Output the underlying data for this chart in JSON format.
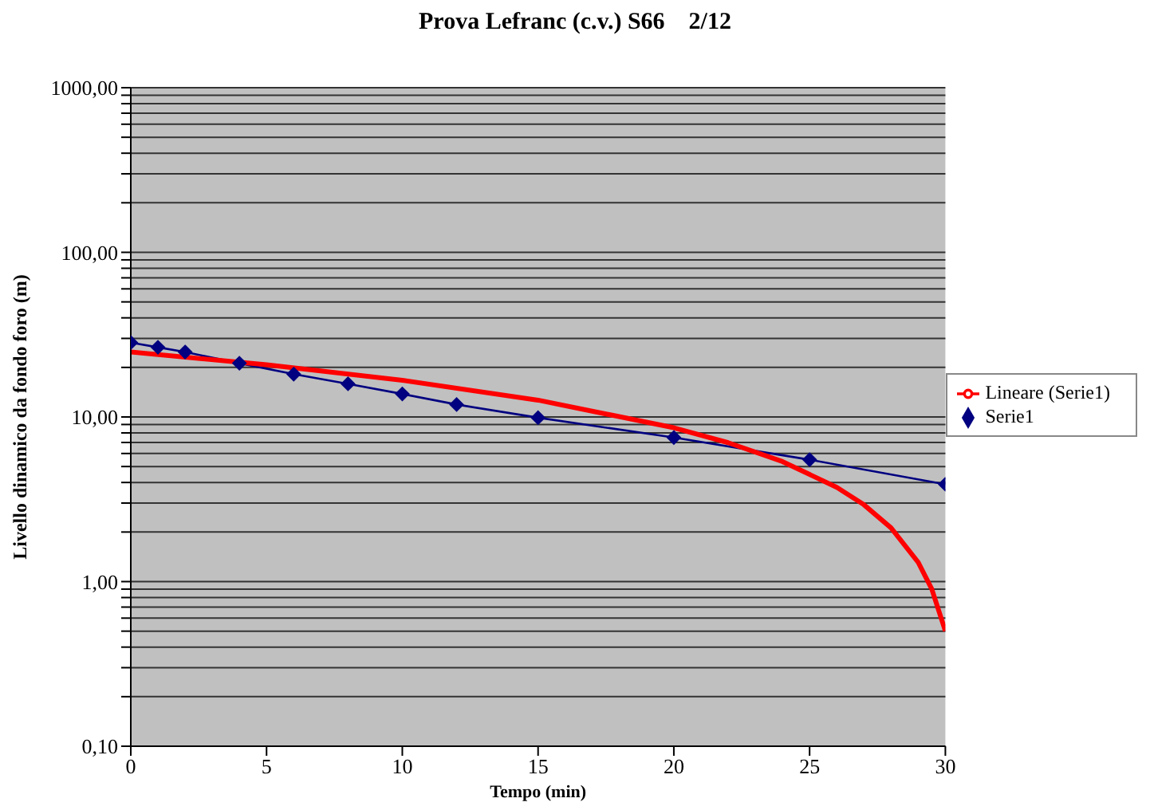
{
  "chart_data": {
    "type": "line",
    "title": "Prova Lefranc (c.v.) S66    2/12",
    "xlabel": "Tempo (min)",
    "ylabel": "Livello dinamico  da fondo foro (m)",
    "log": "y",
    "grid": "y",
    "legend": "right",
    "xlim": [
      0,
      30
    ],
    "xticks": [
      0,
      5,
      10,
      15,
      20,
      25,
      30
    ],
    "ylim": [
      0.1,
      1000
    ],
    "yticks": [
      {
        "value": 0.1,
        "label": "0,10"
      },
      {
        "value": 0.2,
        "label": null
      },
      {
        "value": 0.3,
        "label": null
      },
      {
        "value": 0.4,
        "label": null
      },
      {
        "value": 0.5,
        "label": null
      },
      {
        "value": 0.6,
        "label": null
      },
      {
        "value": 0.7,
        "label": null
      },
      {
        "value": 0.8,
        "label": null
      },
      {
        "value": 0.9,
        "label": null
      },
      {
        "value": 1,
        "label": "1,00"
      },
      {
        "value": 2,
        "label": null
      },
      {
        "value": 3,
        "label": null
      },
      {
        "value": 4,
        "label": null
      },
      {
        "value": 5,
        "label": null
      },
      {
        "value": 6,
        "label": null
      },
      {
        "value": 7,
        "label": null
      },
      {
        "value": 8,
        "label": null
      },
      {
        "value": 9,
        "label": null
      },
      {
        "value": 10,
        "label": "10,00"
      },
      {
        "value": 20,
        "label": null
      },
      {
        "value": 30,
        "label": null
      },
      {
        "value": 40,
        "label": null
      },
      {
        "value": 50,
        "label": null
      },
      {
        "value": 60,
        "label": null
      },
      {
        "value": 70,
        "label": null
      },
      {
        "value": 80,
        "label": null
      },
      {
        "value": 90,
        "label": null
      },
      {
        "value": 100,
        "label": "100,00"
      },
      {
        "value": 200,
        "label": null
      },
      {
        "value": 300,
        "label": null
      },
      {
        "value": 400,
        "label": null
      },
      {
        "value": 500,
        "label": null
      },
      {
        "value": 600,
        "label": null
      },
      {
        "value": 700,
        "label": null
      },
      {
        "value": 800,
        "label": null
      },
      {
        "value": 900,
        "label": null
      },
      {
        "value": 1000,
        "label": "1000,00"
      }
    ],
    "series": [
      {
        "name": "Serie1",
        "color": "#000080",
        "marker": "diamond",
        "x": [
          0,
          1,
          2,
          4,
          6,
          8,
          10,
          12,
          15,
          20,
          25,
          30
        ],
        "values": [
          28.3,
          26.5,
          24.8,
          21.2,
          18.2,
          15.9,
          13.8,
          11.9,
          9.9,
          7.5,
          5.5,
          3.9
        ]
      },
      {
        "name": "Lineare (Serie1)",
        "color": "#ff0000",
        "marker": "none",
        "x": [
          0,
          5,
          10,
          15,
          20,
          22,
          24,
          26,
          27,
          28,
          29,
          29.5,
          30
        ],
        "values": [
          24.8,
          20.75,
          16.7,
          12.65,
          8.6,
          6.98,
          5.36,
          3.74,
          2.93,
          2.12,
          1.31,
          0.9,
          0.5
        ]
      }
    ]
  }
}
